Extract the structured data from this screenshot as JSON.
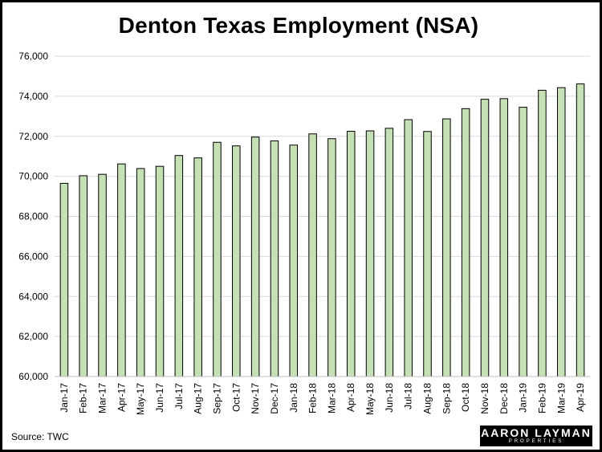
{
  "chart_data": {
    "type": "bar",
    "title": "Denton Texas Employment (NSA)",
    "xlabel": "",
    "ylabel": "",
    "ylim": [
      60000,
      76000
    ],
    "yticks": [
      60000,
      62000,
      64000,
      66000,
      68000,
      70000,
      72000,
      74000,
      76000
    ],
    "ytick_labels": [
      "60,000",
      "62,000",
      "64,000",
      "66,000",
      "68,000",
      "70,000",
      "72,000",
      "74,000",
      "76,000"
    ],
    "grid": true,
    "categories": [
      "Jan-17",
      "Feb-17",
      "Mar-17",
      "Apr-17",
      "May-17",
      "Jun-17",
      "Jul-17",
      "Aug-17",
      "Sep-17",
      "Oct-17",
      "Nov-17",
      "Dec-17",
      "Jan-18",
      "Feb-18",
      "Mar-18",
      "Apr-18",
      "May-18",
      "Jun-18",
      "Jul-18",
      "Aug-18",
      "Sep-18",
      "Oct-18",
      "Nov-18",
      "Dec-18",
      "Jan-19",
      "Feb-19",
      "Mar-19",
      "Apr-19"
    ],
    "values": [
      69650,
      70030,
      70100,
      70620,
      70390,
      70500,
      71040,
      70920,
      71700,
      71520,
      71960,
      71770,
      71560,
      72120,
      71880,
      72250,
      72270,
      72400,
      72830,
      72240,
      72870,
      73380,
      73850,
      73880,
      73450,
      74300,
      74430,
      74620
    ],
    "bar_color": "#c5e0b4",
    "bar_edge_color": "#000000"
  },
  "footer": {
    "source": "Source: TWC",
    "logo_main": "AARON LAYMAN",
    "logo_sub": "PROPERTIES"
  }
}
